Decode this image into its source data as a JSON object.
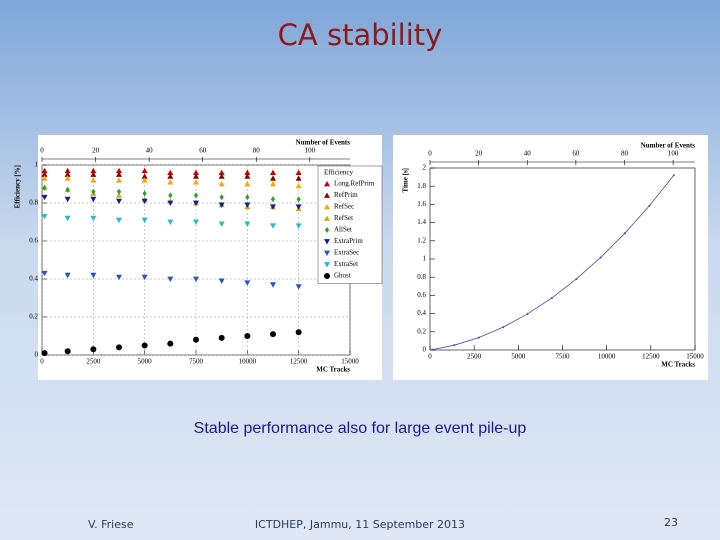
{
  "title": "CA stability",
  "caption": "Stable performance also for large event pile-up",
  "footer": {
    "author": "V. Friese",
    "event": "ICTDHEP, Jammu, 11 September 2013",
    "page": "23"
  },
  "chart_data": [
    {
      "type": "scatter",
      "x_label": "MC Tracks",
      "y_label": "Efficiency [%]",
      "x2_label": "Number of Events",
      "legend_title": "Efficiency",
      "legend": "upper right",
      "grid": true,
      "xlim": [
        0,
        15000
      ],
      "xticks": [
        0,
        2500,
        5000,
        7500,
        10000,
        12500,
        15000
      ],
      "ylim": [
        0,
        1
      ],
      "yticks": [
        0,
        0.2,
        0.4,
        0.6,
        0.8,
        1
      ],
      "x2lim": [
        0,
        115
      ],
      "x2ticks": [
        0,
        20,
        40,
        60,
        80,
        100
      ],
      "x": [
        125,
        1250,
        2500,
        3750,
        5000,
        6250,
        7500,
        8750,
        10000,
        11250,
        12500
      ],
      "series": [
        {
          "name": "Long.RefPrim",
          "color": "#d00000",
          "marker": "triangle-up",
          "values": [
            0.97,
            0.97,
            0.97,
            0.97,
            0.97,
            0.96,
            0.96,
            0.96,
            0.96,
            0.96,
            0.96
          ]
        },
        {
          "name": "RefPrim",
          "color": "#8b0000",
          "marker": "triangle-up",
          "values": [
            0.95,
            0.95,
            0.95,
            0.95,
            0.94,
            0.94,
            0.94,
            0.94,
            0.94,
            0.93,
            0.93
          ]
        },
        {
          "name": "RefSec",
          "color": "#ffa500",
          "marker": "triangle-up",
          "values": [
            0.93,
            0.93,
            0.92,
            0.92,
            0.92,
            0.91,
            0.91,
            0.9,
            0.9,
            0.9,
            0.89
          ]
        },
        {
          "name": "RefSet",
          "color": "#c8b400",
          "marker": "triangle-up",
          "values": [
            0.88,
            0.87,
            0.85,
            0.84,
            0.82,
            0.81,
            0.8,
            0.79,
            0.78,
            0.78,
            0.77
          ]
        },
        {
          "name": "AllSet",
          "color": "#2e9e2e",
          "marker": "diamond",
          "values": [
            0.88,
            0.87,
            0.86,
            0.86,
            0.85,
            0.84,
            0.84,
            0.83,
            0.83,
            0.82,
            0.82
          ]
        },
        {
          "name": "ExtraPrim",
          "color": "#1a1a9e",
          "marker": "triangle-down",
          "values": [
            0.83,
            0.82,
            0.82,
            0.81,
            0.81,
            0.8,
            0.8,
            0.79,
            0.79,
            0.78,
            0.78
          ]
        },
        {
          "name": "ExtraSec",
          "color": "#2a4fd0",
          "marker": "triangle-down",
          "values": [
            0.43,
            0.42,
            0.42,
            0.41,
            0.41,
            0.4,
            0.4,
            0.39,
            0.38,
            0.37,
            0.36
          ]
        },
        {
          "name": "ExtraSet",
          "color": "#20c0c0",
          "marker": "triangle-down",
          "values": [
            0.73,
            0.72,
            0.72,
            0.71,
            0.71,
            0.7,
            0.7,
            0.69,
            0.69,
            0.68,
            0.68
          ]
        },
        {
          "name": "Ghost",
          "color": "#000000",
          "marker": "circle",
          "values": [
            0.01,
            0.02,
            0.03,
            0.04,
            0.05,
            0.06,
            0.08,
            0.09,
            0.1,
            0.11,
            0.12
          ]
        }
      ]
    },
    {
      "type": "line",
      "x_label": "MC Tracks",
      "y_label": "Time [s]",
      "x2_label": "Number of Events",
      "grid": false,
      "xlim": [
        0,
        15000
      ],
      "xticks": [
        0,
        2500,
        5000,
        7500,
        10000,
        12500,
        15000
      ],
      "ylim": [
        0,
        2
      ],
      "yticks": [
        0,
        0.2,
        0.4,
        0.6,
        0.8,
        1,
        1.2,
        1.4,
        1.6,
        1.8,
        2
      ],
      "x2lim": [
        0,
        109
      ],
      "x2ticks": [
        0,
        20,
        40,
        60,
        80,
        100
      ],
      "x": [
        138,
        1380,
        2760,
        4140,
        5520,
        6900,
        8280,
        9660,
        11040,
        12420,
        13800
      ],
      "series": [
        {
          "color": "#5a3fc0",
          "marker": "circle",
          "values": [
            0.004,
            0.053,
            0.136,
            0.251,
            0.396,
            0.572,
            0.779,
            1.017,
            1.285,
            1.585,
            1.92
          ]
        }
      ]
    }
  ]
}
